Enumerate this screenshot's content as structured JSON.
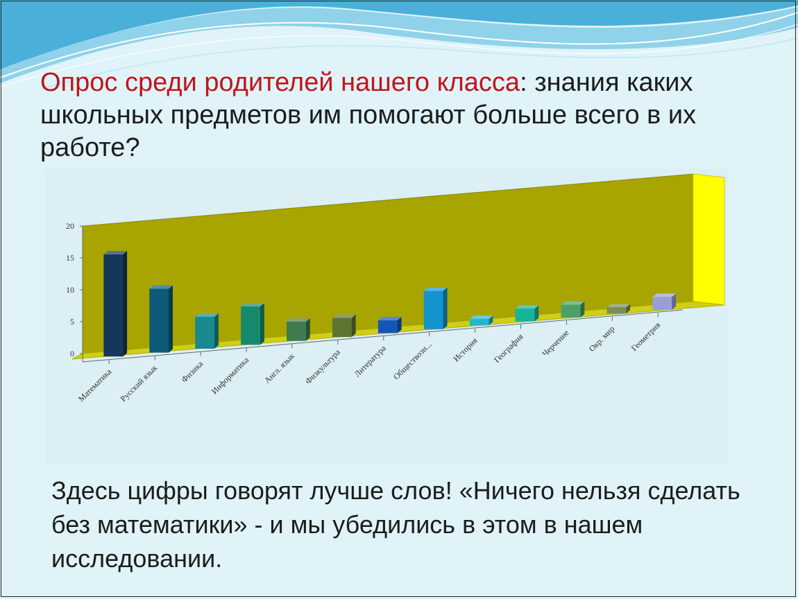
{
  "slide": {
    "title_accent": "Опрос среди родителей нашего класса",
    "title_rest": ": знания каких школьных предметов им помогают больше всего в их работе?",
    "conclusion": "Здесь цифры говорят лучше слов! «Ничего нельзя сделать без математики» - и мы убедились в этом в нашем исследовании.",
    "colors": {
      "background": "#dff3f8",
      "title_accent": "#c0151b",
      "wave": "#3aa9d6",
      "chart_back_wall": "#a8a400",
      "chart_side_wall": "#ffff00",
      "chart_floor": "#cfcf1a"
    }
  },
  "chart_data": {
    "type": "bar",
    "style": "3d-column",
    "title": "",
    "xlabel": "",
    "ylabel": "",
    "ylim": [
      0,
      20
    ],
    "yticks": [
      0,
      5,
      10,
      15,
      20
    ],
    "grid": false,
    "legend": "none",
    "categories": [
      "Математика",
      "Русский язык",
      "Физика",
      "Информатика",
      "Англ. язык",
      "Физкультура",
      "Литература",
      "Обществозн...",
      "История",
      "География",
      "Черчение",
      "Окр. мир",
      "Геометрия"
    ],
    "values": [
      16,
      10,
      5,
      6,
      3,
      3,
      2,
      6,
      1,
      2,
      2,
      1,
      2
    ],
    "bar_colors": [
      "#15385a",
      "#0c5a78",
      "#178a8e",
      "#178a6e",
      "#3f7a50",
      "#5c7632",
      "#1257b8",
      "#1494cf",
      "#22b6cf",
      "#17b49a",
      "#4aa068",
      "#7b8e52",
      "#9a9ed6"
    ]
  }
}
